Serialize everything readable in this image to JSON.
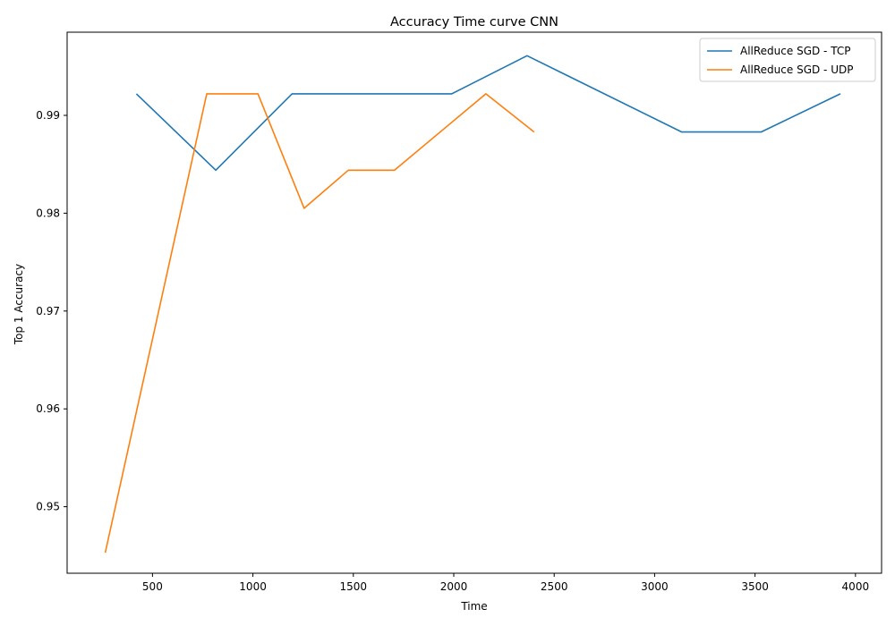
{
  "chart_data": {
    "type": "line",
    "title": "Accuracy Time curve CNN",
    "xlabel": "Time",
    "ylabel": "Top 1 Accuracy",
    "xlim": [
      75,
      4130
    ],
    "ylim": [
      0.9432,
      0.9985
    ],
    "xticks": [
      500,
      1000,
      1500,
      2000,
      2500,
      3000,
      3500,
      4000
    ],
    "xtick_labels": [
      "500",
      "1000",
      "1500",
      "2000",
      "2500",
      "3000",
      "3500",
      "4000"
    ],
    "yticks": [
      0.95,
      0.96,
      0.97,
      0.98,
      0.99
    ],
    "ytick_labels": [
      "0.95",
      "0.96",
      "0.97",
      "0.98",
      "0.99"
    ],
    "grid": false,
    "legend_position": "top-right",
    "series": [
      {
        "name": "AllReduce SGD - TCP",
        "color": "#1f77b4",
        "x": [
          420,
          815,
          1195,
          1990,
          2365,
          3135,
          3530,
          3925
        ],
        "y": [
          0.9922,
          0.9844,
          0.9922,
          0.9922,
          0.9961,
          0.9883,
          0.9883,
          0.9922
        ]
      },
      {
        "name": "AllReduce SGD - UDP",
        "color": "#ff7f0e",
        "x": [
          265,
          770,
          1025,
          1255,
          1475,
          1705,
          2160,
          2400
        ],
        "y": [
          0.9453,
          0.9922,
          0.9922,
          0.9805,
          0.9844,
          0.9844,
          0.9922,
          0.9883
        ]
      }
    ]
  }
}
